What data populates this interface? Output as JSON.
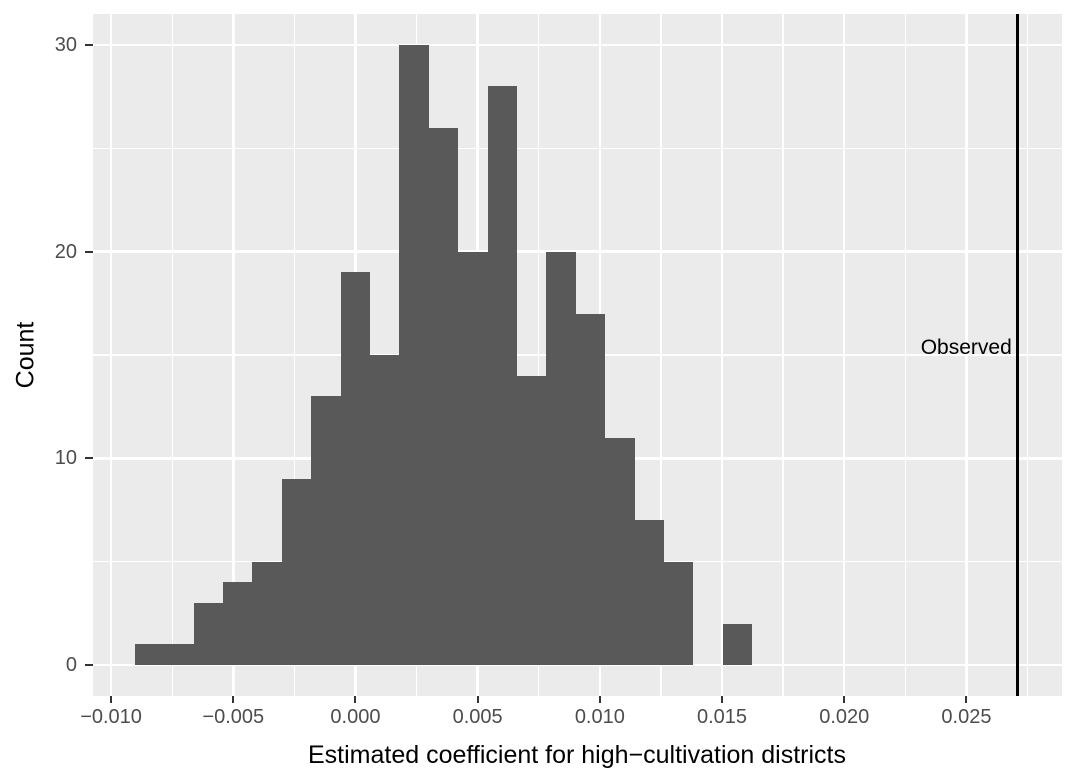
{
  "chart_data": {
    "type": "bar",
    "subtype": "histogram",
    "title": "",
    "xlabel": "Estimated coefficient for high−cultivation districts",
    "ylabel": "Count",
    "x_range": [
      -0.01076,
      0.02889
    ],
    "y_range": [
      -1.5,
      31.5
    ],
    "bin_start": -0.00903,
    "bin_width": 0.0012032,
    "counts": [
      1,
      1,
      3,
      4,
      5,
      9,
      13,
      19,
      15,
      30,
      26,
      20,
      28,
      14,
      20,
      17,
      11,
      7,
      5,
      0,
      2
    ],
    "x_ticks": [
      {
        "value": -0.01,
        "label": "−0.010"
      },
      {
        "value": -0.005,
        "label": "−0.005"
      },
      {
        "value": 0.0,
        "label": "0.000"
      },
      {
        "value": 0.005,
        "label": "0.005"
      },
      {
        "value": 0.01,
        "label": "0.010"
      },
      {
        "value": 0.015,
        "label": "0.015"
      },
      {
        "value": 0.02,
        "label": "0.020"
      },
      {
        "value": 0.025,
        "label": "0.025"
      }
    ],
    "y_ticks": [
      {
        "value": 0,
        "label": "0"
      },
      {
        "value": 10,
        "label": "10"
      },
      {
        "value": 20,
        "label": "20"
      },
      {
        "value": 30,
        "label": "30"
      }
    ],
    "x_minor": [
      -0.0075,
      -0.0025,
      0.0025,
      0.0075,
      0.0125,
      0.0175,
      0.0225,
      0.0275
    ],
    "y_minor": [
      5,
      15,
      25
    ],
    "grid": true,
    "legend": "none",
    "observed_line_x": 0.0271
  },
  "annotation": {
    "label": "Observed",
    "x_value": 0.0271
  },
  "colors": {
    "panel_background": "#EBEBEB",
    "gridline": "#FFFFFF",
    "bar_fill": "#595959",
    "axis_text": "#4D4D4D",
    "tick_mark": "#333333",
    "title_text": "#000000",
    "observed_line": "#000000"
  }
}
